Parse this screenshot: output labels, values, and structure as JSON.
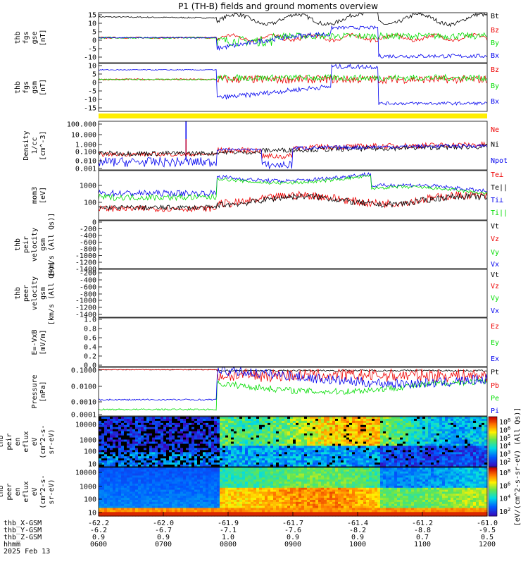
{
  "title": "P1 (TH-B) fields and ground moments overview",
  "colors": {
    "black": "#000000",
    "red": "#ee0000",
    "green": "#00dd00",
    "blue": "#0000ee",
    "yellow": "#ffee00"
  },
  "chart_data": [
    {
      "type": "line",
      "panel": "fgs_gse",
      "ylabel": [
        "thb",
        "fgs",
        "gse",
        "[nT]"
      ],
      "ylim": [
        -15,
        15
      ],
      "ytick_labels": [
        "15",
        "10",
        "5",
        "0",
        "-5",
        "-10"
      ],
      "series": [
        {
          "name": "Bt",
          "color": "black"
        },
        {
          "name": "Bz",
          "color": "red"
        },
        {
          "name": "By",
          "color": "green"
        },
        {
          "name": "Bx",
          "color": "blue"
        }
      ]
    },
    {
      "type": "line",
      "panel": "fgs_gsm",
      "ylabel": [
        "thb",
        "fgs",
        "gsm",
        "[nT]"
      ],
      "ylim": [
        -20,
        10
      ],
      "ytick_labels": [
        "10",
        "5",
        "0",
        "-5",
        "-10",
        "-15"
      ],
      "series": [
        {
          "name": "Bz",
          "color": "red"
        },
        {
          "name": "By",
          "color": "green"
        },
        {
          "name": "Bx",
          "color": "blue"
        }
      ]
    },
    {
      "type": "line",
      "panel": "density",
      "ylabel": [
        "Density",
        "1/cc",
        "[cm^-3]"
      ],
      "scale": "log",
      "ytick_labels": [
        "100.000",
        "10.000",
        "1.000",
        "0.100",
        "0.010",
        "0.001"
      ],
      "series": [
        {
          "name": "Ne",
          "color": "red"
        },
        {
          "name": "Ni",
          "color": "black"
        },
        {
          "name": "Npot",
          "color": "blue"
        }
      ]
    },
    {
      "type": "line",
      "panel": "temperature",
      "ylabel": [
        "mom3",
        "[eV]"
      ],
      "scale": "log",
      "ytick_labels": [
        "1000",
        "100"
      ],
      "series": [
        {
          "name": "Te⊥",
          "color": "red"
        },
        {
          "name": "Te||",
          "color": "black"
        },
        {
          "name": "Ti⊥",
          "color": "blue"
        },
        {
          "name": "Ti||",
          "color": "green"
        }
      ]
    },
    {
      "type": "line",
      "panel": "peir_velocity",
      "ylabel": [
        "thb",
        "peir",
        "velocity",
        "gsm",
        "[km/s (All Qs)]"
      ],
      "ylim": [
        -1400,
        0
      ],
      "ytick_labels": [
        "0",
        "-200",
        "-400",
        "-600",
        "-800",
        "-1000",
        "-1200",
        "-1400"
      ],
      "series": [
        {
          "name": "Vt",
          "color": "black"
        },
        {
          "name": "Vz",
          "color": "red"
        },
        {
          "name": "Vy",
          "color": "green"
        },
        {
          "name": "Vx",
          "color": "blue"
        }
      ]
    },
    {
      "type": "line",
      "panel": "peer_velocity",
      "ylabel": [
        "thb",
        "peer",
        "velocity",
        "gsm",
        "[km/s (All Qs)]"
      ],
      "ylim": [
        -1400,
        -200
      ],
      "ytick_labels": [
        "-200",
        "-400",
        "-600",
        "-800",
        "-1000",
        "-1200",
        "-1400"
      ],
      "series": [
        {
          "name": "Vt",
          "color": "black"
        },
        {
          "name": "Vz",
          "color": "red"
        },
        {
          "name": "Vy",
          "color": "green"
        },
        {
          "name": "Vx",
          "color": "blue"
        }
      ]
    },
    {
      "type": "line",
      "panel": "efield",
      "ylabel": [
        "E=-VxB",
        "[mV/m]"
      ],
      "ylim": [
        0,
        1
      ],
      "ytick_labels": [
        "1.0",
        "0.8",
        "0.6",
        "0.4",
        "0.2",
        "0.0"
      ],
      "series": [
        {
          "name": "Ez",
          "color": "red"
        },
        {
          "name": "Ey",
          "color": "green"
        },
        {
          "name": "Ex",
          "color": "blue"
        }
      ]
    },
    {
      "type": "line",
      "panel": "pressure",
      "ylabel": [
        "Pressure",
        "[nPa]"
      ],
      "scale": "log",
      "ytick_labels": [
        "0.1000",
        "0.0100",
        "0.0010",
        "0.0001"
      ],
      "series": [
        {
          "name": "Pt",
          "color": "black"
        },
        {
          "name": "Pb",
          "color": "red"
        },
        {
          "name": "Pe",
          "color": "green"
        },
        {
          "name": "Pi",
          "color": "blue"
        }
      ]
    },
    {
      "type": "heatmap",
      "panel": "peir_spectrogram",
      "ylabel": [
        "thb",
        "peir",
        "en",
        "eflux",
        "eV",
        "(cm^2-s-",
        "sr-eV)"
      ],
      "scale": "log",
      "ytick_labels": [
        "10000",
        "1000",
        "100",
        "10"
      ]
    },
    {
      "type": "heatmap",
      "panel": "peer_spectrogram",
      "ylabel": [
        "thb",
        "peer",
        "en",
        "eflux",
        "eV",
        "(cm^2-s-",
        "sr-eV)"
      ],
      "scale": "log",
      "ytick_labels": [
        "10000",
        "1000",
        "100",
        "10"
      ]
    }
  ],
  "colorbar": {
    "label": "[eV/(cm^2-s-sr-eV) (All Qs)]",
    "peir_ticks": [
      "10^8",
      "10^6",
      "10^5",
      "10^4",
      "10^3",
      "10^2"
    ],
    "peer_ticks": [
      "10^8",
      "10^6",
      "10^4",
      "10^2"
    ]
  },
  "x_axis": {
    "rows": [
      {
        "label": "thb_X-GSM",
        "values": [
          "-62.2",
          "-62.0",
          "-61.9",
          "-61.7",
          "-61.4",
          "-61.2",
          "-61.0"
        ]
      },
      {
        "label": "thb_Y-GSM",
        "values": [
          "-6.2",
          "-6.7",
          "-7.1",
          "-7.6",
          "-8.2",
          "-8.8",
          "-9.5"
        ]
      },
      {
        "label": "thb_Z-GSM",
        "values": [
          "0.9",
          "0.9",
          "1.0",
          "0.9",
          "0.9",
          "0.7",
          "0.5"
        ]
      },
      {
        "label": "hhmm",
        "values": [
          "0600",
          "0700",
          "0800",
          "0900",
          "1000",
          "1100",
          "1200"
        ]
      }
    ],
    "date": "2025 Feb 13"
  }
}
